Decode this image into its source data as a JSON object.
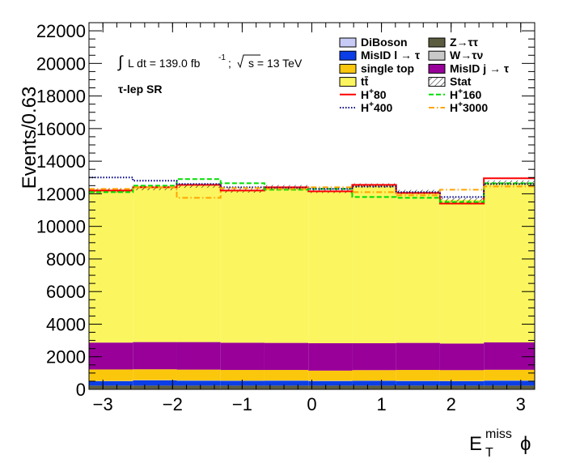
{
  "chart_data": {
    "type": "bar",
    "subtype": "stacked-histogram",
    "xlabel_main": "E",
    "xlabel_sub": "T",
    "xlabel_sup": "miss",
    "xlabel_tail": "ϕ",
    "ylabel": "Events/0.63",
    "xlim": [
      -3.2,
      3.2
    ],
    "ylim": [
      0,
      22500
    ],
    "x_ticks": [
      -3,
      -2,
      -1,
      0,
      1,
      2,
      3
    ],
    "x_tick_labels": [
      "−3",
      "−2",
      "−1",
      "0",
      "1",
      "2",
      "3"
    ],
    "y_ticks": [
      0,
      2000,
      4000,
      6000,
      8000,
      10000,
      12000,
      14000,
      16000,
      18000,
      20000,
      22000
    ],
    "y_tick_labels": [
      "0",
      "2000",
      "4000",
      "6000",
      "8000",
      "10000",
      "12000",
      "14000",
      "16000",
      "18000",
      "20000",
      "22000"
    ],
    "bin_edges": [
      -3.2,
      -2.57,
      -1.94,
      -1.31,
      -0.68,
      -0.05,
      0.58,
      1.21,
      1.84,
      2.47,
      3.2
    ],
    "stack_series": [
      {
        "name": "DiBoson",
        "color": "#c8cbf5",
        "values": [
          30,
          30,
          30,
          30,
          30,
          30,
          30,
          30,
          30,
          30
        ]
      },
      {
        "name": "Z→ττ",
        "color": "#5c5c40",
        "values": [
          200,
          200,
          200,
          200,
          200,
          200,
          200,
          200,
          200,
          200
        ]
      },
      {
        "name": "MisID l → τ",
        "color": "#0b3ee6",
        "values": [
          270,
          320,
          300,
          290,
          300,
          280,
          290,
          280,
          270,
          300
        ]
      },
      {
        "name": "W→τν",
        "color": "#c9c9c9",
        "values": [
          20,
          20,
          20,
          20,
          20,
          20,
          20,
          20,
          20,
          20
        ]
      },
      {
        "name": "single top",
        "color": "#fbc70d",
        "values": [
          700,
          660,
          660,
          650,
          640,
          620,
          640,
          660,
          660,
          650
        ]
      },
      {
        "name": "MisID j → τ",
        "color": "#980099",
        "values": [
          1650,
          1670,
          1690,
          1670,
          1660,
          1680,
          1650,
          1660,
          1630,
          1680
        ]
      },
      {
        "name": "tt̄",
        "color": "#fbf55f",
        "values": [
          9330,
          9450,
          9600,
          9340,
          9550,
          9350,
          9670,
          9260,
          8820,
          9800
        ]
      }
    ],
    "signal_series": [
      {
        "name": "H+80",
        "color": "#ff0000",
        "style": "solid",
        "values": [
          12200,
          12400,
          12550,
          12200,
          12400,
          12150,
          12550,
          12050,
          11400,
          12950
        ]
      },
      {
        "name": "H+160",
        "color": "#00dd00",
        "style": "dashed",
        "values": [
          12100,
          12500,
          12900,
          12650,
          12250,
          12300,
          11800,
          11750,
          11500,
          12650
        ]
      },
      {
        "name": "H+400",
        "color": "#00008b",
        "style": "dotted",
        "values": [
          13000,
          12800,
          12600,
          12400,
          12350,
          12300,
          12450,
          12100,
          11800,
          12600
        ]
      },
      {
        "name": "H+3000",
        "color": "#ffa500",
        "style": "dashdot",
        "values": [
          12300,
          12400,
          11750,
          12350,
          12300,
          12400,
          12100,
          11900,
          12250,
          12450
        ]
      }
    ],
    "annotations": {
      "lumi_prefix": "∫",
      "lumi_text": "L dt = 139.0 fb",
      "lumi_exp": "-1",
      "lumi_sep": ";",
      "sqrt_text": "s = 13 TeV",
      "region": "τ-lep SR"
    },
    "legend": {
      "placement": "top-right",
      "columns": [
        [
          {
            "label": "DiBoson",
            "kind": "box",
            "color": "#c8cbf5"
          },
          {
            "label": "MisID l → τ",
            "kind": "box",
            "color": "#0b3ee6"
          },
          {
            "label": "single top",
            "kind": "box",
            "color": "#fbc70d"
          },
          {
            "label": "tt̄",
            "kind": "box",
            "color": "#fbf55f"
          },
          {
            "label": "H+80",
            "kind": "line",
            "color": "#ff0000",
            "style": "solid"
          },
          {
            "label": "H+400",
            "kind": "line",
            "color": "#00008b",
            "style": "dotted"
          }
        ],
        [
          {
            "label": "Z→ττ",
            "kind": "box",
            "color": "#5c5c40"
          },
          {
            "label": "W→τν",
            "kind": "box",
            "color": "#c9c9c9"
          },
          {
            "label": "MisID j → τ",
            "kind": "box",
            "color": "#980099"
          },
          {
            "label": "Stat",
            "kind": "hatch",
            "color": "#000000"
          },
          {
            "label": "H+160",
            "kind": "line",
            "color": "#00dd00",
            "style": "dashed"
          },
          {
            "label": "H+3000",
            "kind": "line",
            "color": "#ffa500",
            "style": "dashdot"
          }
        ]
      ]
    }
  }
}
